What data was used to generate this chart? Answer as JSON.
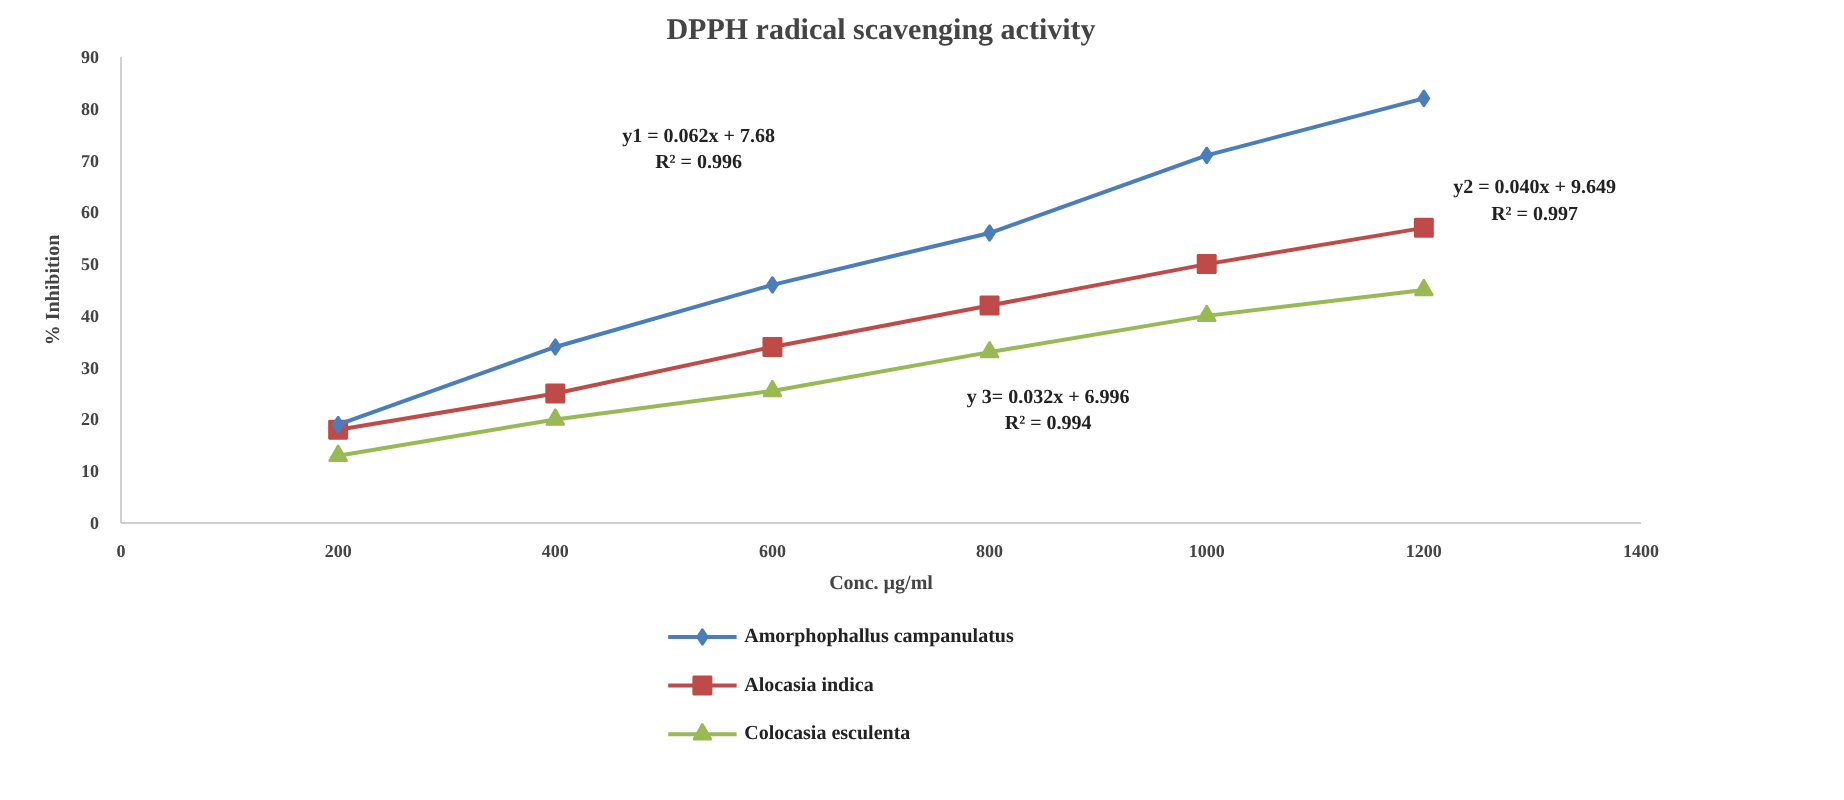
{
  "chart_data": {
    "type": "line",
    "title": "DPPH radical scavenging activity",
    "xlabel": "Conc. µg/ml",
    "ylabel": "% Inhibition",
    "x": [
      200,
      400,
      600,
      800,
      1000,
      1200
    ],
    "series": [
      {
        "name": "Amorphophallus campanulatus",
        "color": "#4a7ebb",
        "marker": "diamond",
        "values": [
          19,
          34,
          46,
          56,
          71,
          82
        ]
      },
      {
        "name": "Alocasia indica",
        "color": "#be4b48",
        "marker": "square",
        "values": [
          18,
          25,
          34,
          42,
          50,
          57
        ]
      },
      {
        "name": "Colocasia esculenta",
        "color": "#98b954",
        "marker": "triangle",
        "values": [
          13,
          20,
          25.5,
          33,
          40,
          45
        ]
      }
    ],
    "xlim": [
      0,
      1400
    ],
    "xticks": [
      0,
      200,
      400,
      600,
      800,
      1000,
      1200,
      1400
    ],
    "ylim": [
      0,
      90
    ],
    "yticks": [
      0,
      10,
      20,
      30,
      40,
      50,
      60,
      70,
      80,
      90
    ],
    "grid": false,
    "legend": "bottom",
    "annotations": [
      "y1 = 0.062x + 7.68\nR² = 0.996",
      "y2 = 0.040x + 9.649\nR² = 0.997",
      "y 3= 0.032x + 6.996\nR² = 0.994"
    ]
  }
}
